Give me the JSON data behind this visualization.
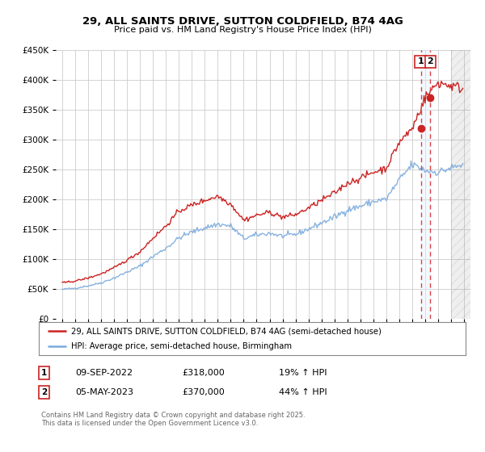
{
  "title": "29, ALL SAINTS DRIVE, SUTTON COLDFIELD, B74 4AG",
  "subtitle": "Price paid vs. HM Land Registry's House Price Index (HPI)",
  "legend_line1": "29, ALL SAINTS DRIVE, SUTTON COLDFIELD, B74 4AG (semi-detached house)",
  "legend_line2": "HPI: Average price, semi-detached house, Birmingham",
  "transaction1_date": "09-SEP-2022",
  "transaction1_price": "£318,000",
  "transaction1_hpi": "19% ↑ HPI",
  "transaction2_date": "05-MAY-2023",
  "transaction2_price": "£370,000",
  "transaction2_hpi": "44% ↑ HPI",
  "footer": "Contains HM Land Registry data © Crown copyright and database right 2025.\nThis data is licensed under the Open Government Licence v3.0.",
  "hpi_color": "#7aaadd",
  "price_color": "#cc2222",
  "background_color": "#ffffff",
  "grid_color": "#cccccc",
  "vline_color": "#dd4444",
  "highlight_color": "#ddeeff",
  "xlim_left": 1994.5,
  "xlim_right": 2026.5,
  "ylim": [
    0,
    450000
  ],
  "yticks": [
    0,
    50000,
    100000,
    150000,
    200000,
    250000,
    300000,
    350000,
    400000,
    450000
  ],
  "marker1_x": 2022.69,
  "marker1_y": 318000,
  "marker2_x": 2023.35,
  "marker2_y": 370000,
  "vline1_x": 2022.69,
  "vline2_x": 2023.35,
  "future_start": 2025.0
}
